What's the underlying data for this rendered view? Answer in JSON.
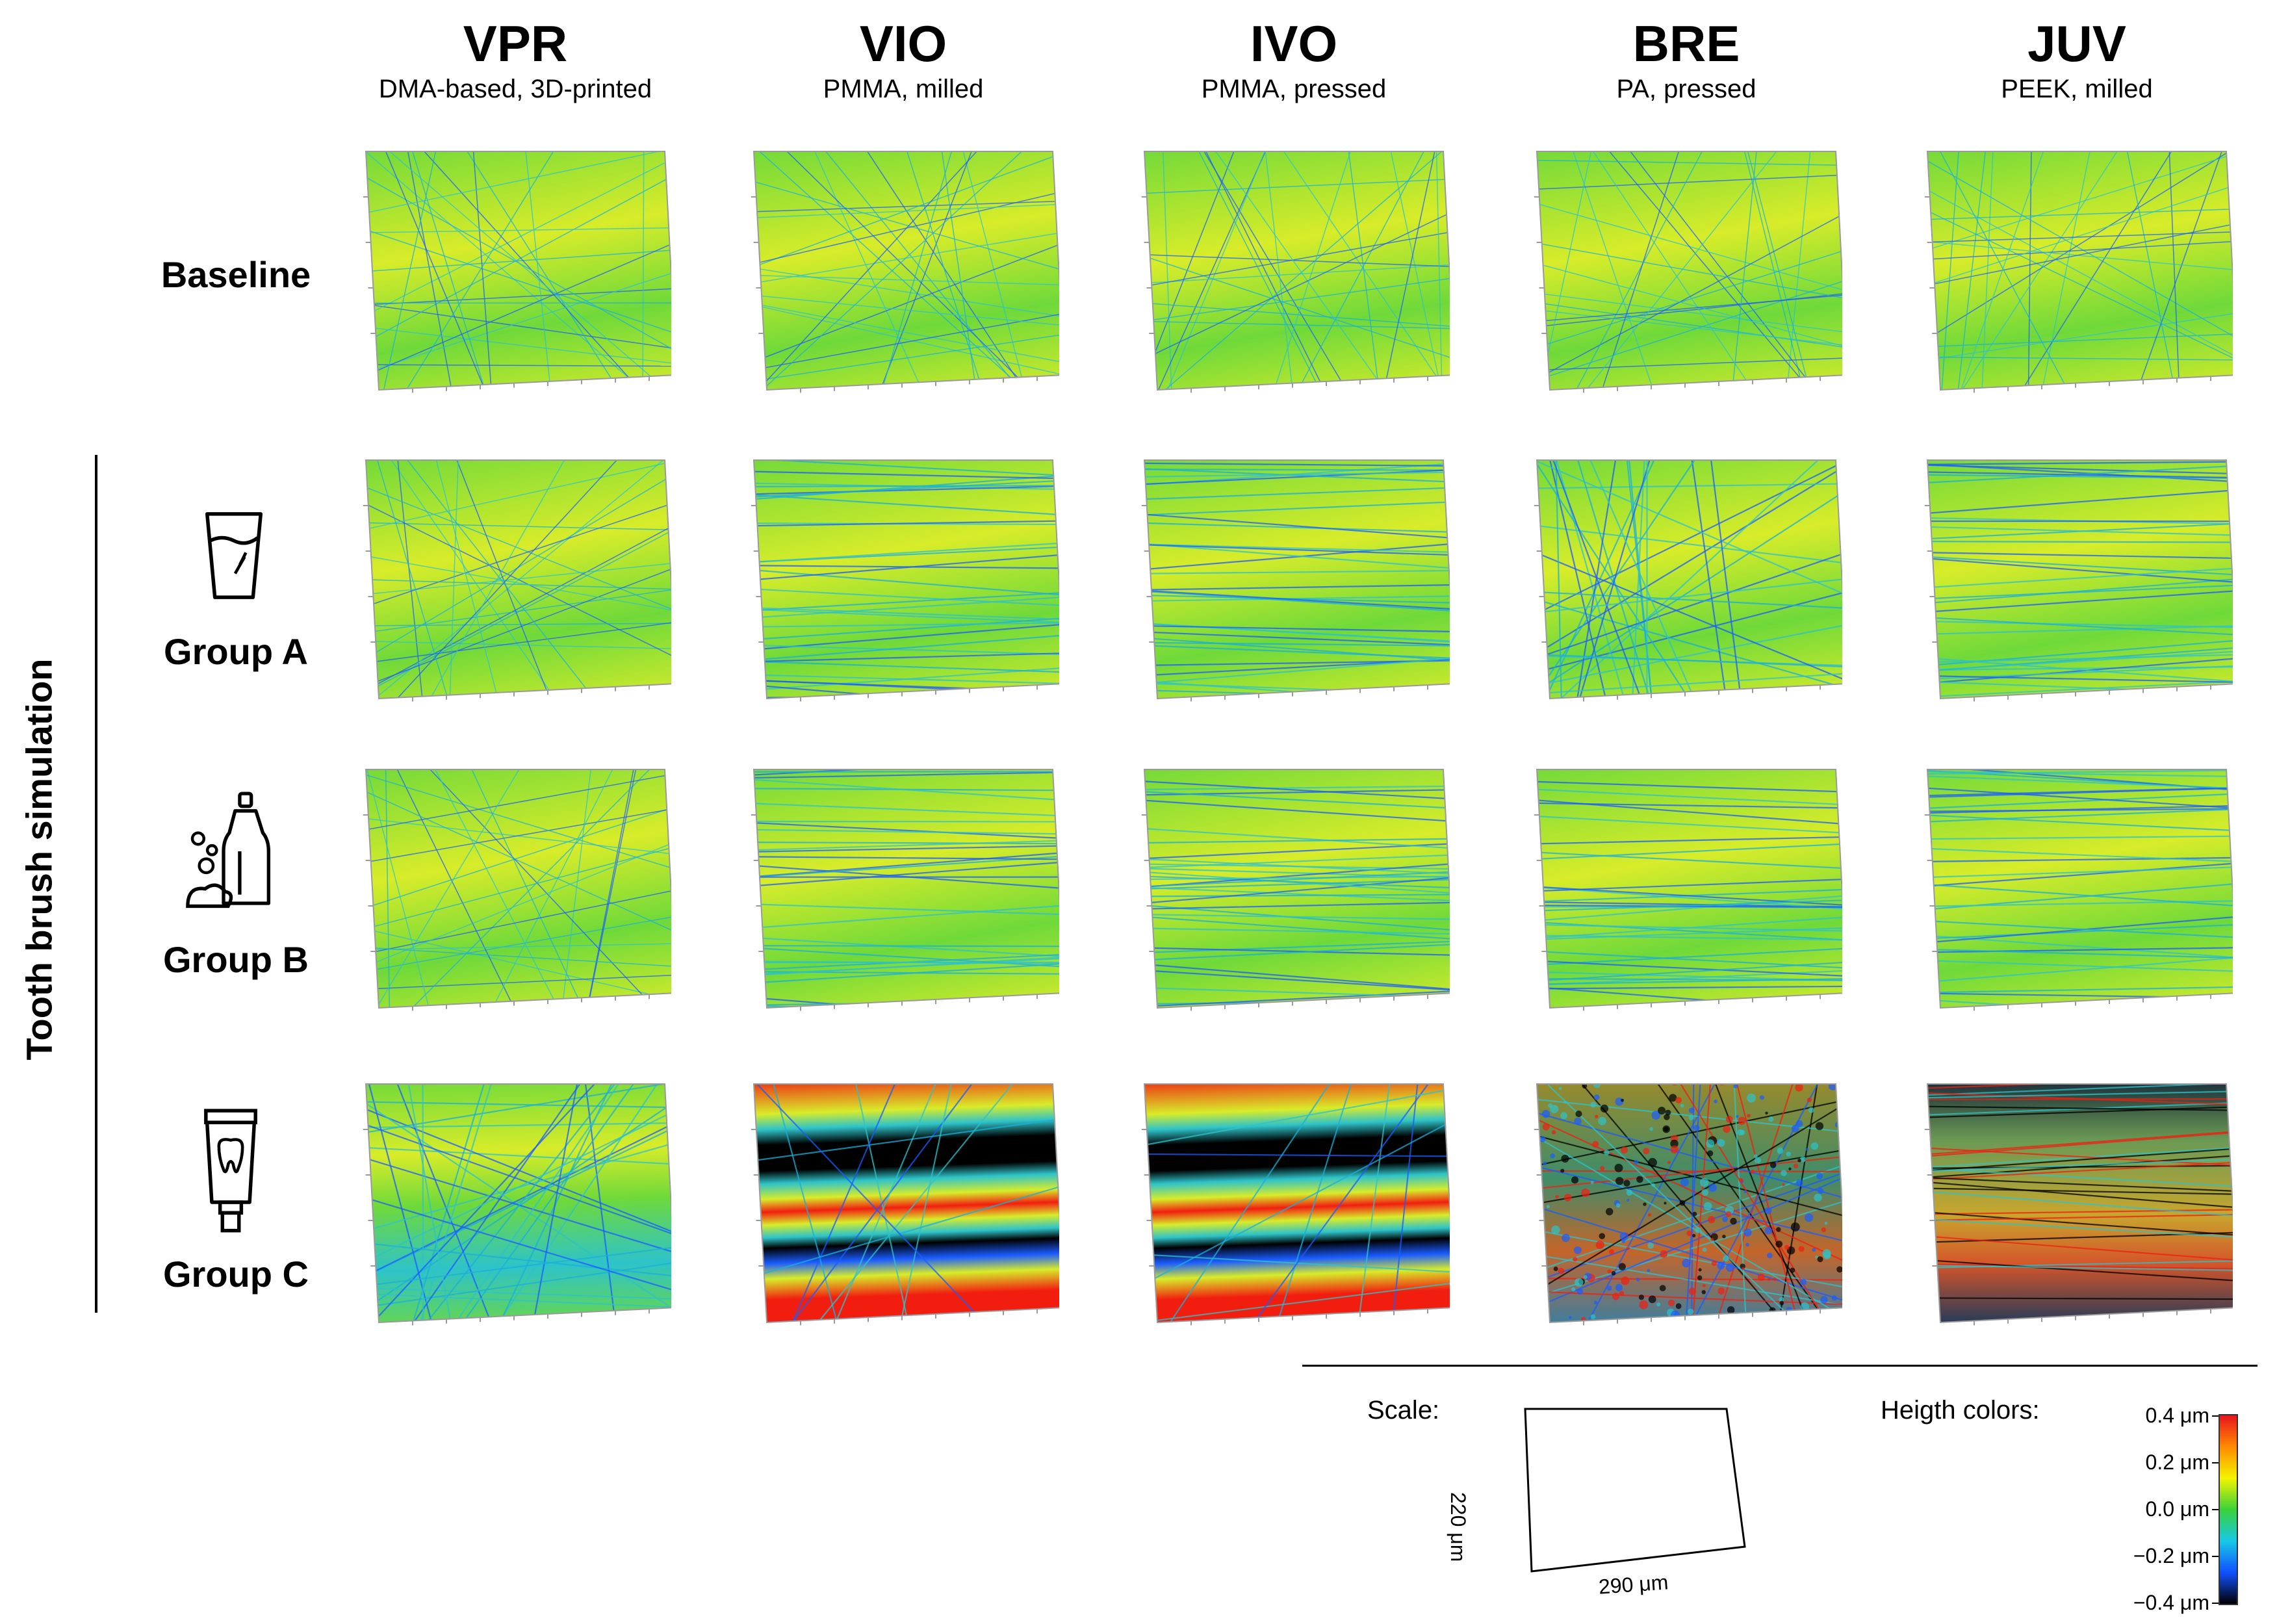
{
  "columns": [
    {
      "code": "VPR",
      "material": "DMA-based, 3D-printed"
    },
    {
      "code": "VIO",
      "material": "PMMA, milled"
    },
    {
      "code": "IVO",
      "material": "PMMA, pressed"
    },
    {
      "code": "BRE",
      "material": "PA, pressed"
    },
    {
      "code": "JUV",
      "material": "PEEK, milled"
    }
  ],
  "rows": [
    {
      "label": "Baseline",
      "icon": "none"
    },
    {
      "label": "Group A",
      "icon": "glass-of-water-icon"
    },
    {
      "label": "Group B",
      "icon": "dish-soap-bottle-icon"
    },
    {
      "label": "Group C",
      "icon": "toothpaste-tube-icon"
    }
  ],
  "side_label": "Tooth brush simulation",
  "surface_types": [
    [
      "smooth",
      "smooth",
      "smooth",
      "smooth",
      "smooth"
    ],
    [
      "smooth",
      "streaked",
      "streaked",
      "rough",
      "striated"
    ],
    [
      "smooth",
      "streaked",
      "streaked",
      "striated",
      "striated"
    ],
    [
      "worn",
      "banded",
      "banded",
      "speckled",
      "dark-striated"
    ]
  ],
  "legend": {
    "scale_label": "Scale:",
    "scale_width": "290 μm",
    "scale_height": "220 μm",
    "colors_label": "Heigth colors:",
    "colorbar_ticks": [
      "0.4 μm",
      "0.2 μm",
      "0.0 μm",
      "−0.2 μm",
      "−0.4 μm"
    ],
    "colorbar_colors": [
      "#e8141e",
      "#ff8a00",
      "#f4f400",
      "#3ad23a",
      "#18c8e6",
      "#1050ff",
      "#000000"
    ]
  },
  "accent_colors": {
    "green": "#6fd93a",
    "yellow": "#d8ec2a",
    "cyan": "#2ec3c9",
    "red": "#f11e10",
    "blue": "#1a5cff",
    "black": "#000000"
  }
}
